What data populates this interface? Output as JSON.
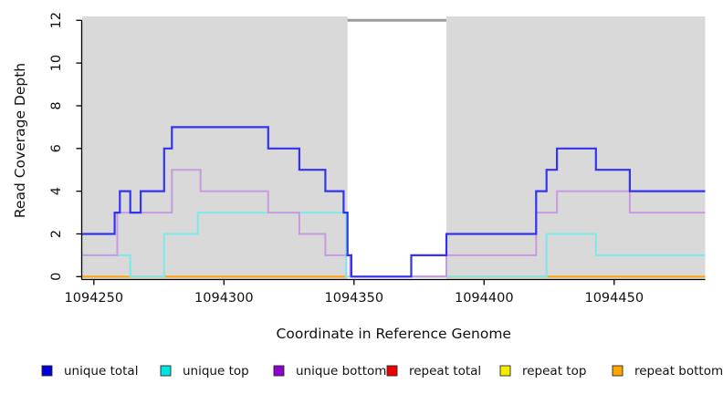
{
  "chart_data": {
    "type": "step-line-coverage",
    "title": "",
    "xlabel": "Coordinate in Reference Genome",
    "ylabel": "Read Coverage Depth",
    "xlim": [
      1094245.5,
      1094485
    ],
    "ylim": [
      0,
      12
    ],
    "xticks": [
      1094250,
      1094300,
      1094350,
      1094400,
      1094450
    ],
    "yticks": [
      0,
      2,
      4,
      6,
      8,
      10,
      12
    ],
    "grid": false,
    "plot_background_color": "#d9d9d9",
    "background_regions": [
      {
        "name": "covered-region-left",
        "x0": 1094245.5,
        "x1": 1094347.5
      },
      {
        "name": "covered-region-right",
        "x0": 1094385.5,
        "x1": 1094485
      }
    ],
    "gap_marker": {
      "x0": 1094347.5,
      "x1": 1094385.5,
      "depth": 12,
      "color": "#9b9b9b"
    },
    "series": [
      {
        "name": "unique total",
        "line_color": "#3434f0",
        "swatch_color": "#0000d8",
        "width": 2.2,
        "segments": [
          [
            [
              1094245.5,
              2
            ],
            [
              1094258,
              3
            ],
            [
              1094260,
              4
            ],
            [
              1094264,
              3
            ],
            [
              1094268,
              4
            ],
            [
              1094277,
              6
            ],
            [
              1094280,
              7
            ],
            [
              1094317,
              6
            ],
            [
              1094329,
              5
            ],
            [
              1094339,
              4
            ],
            [
              1094346,
              3
            ],
            [
              1094347.5,
              1
            ],
            [
              1094349,
              0
            ],
            [
              1094372,
              1
            ],
            [
              1094385.5,
              2
            ],
            [
              1094420,
              4
            ],
            [
              1094424,
              5
            ],
            [
              1094428,
              6
            ],
            [
              1094443,
              5
            ],
            [
              1094456,
              4
            ],
            [
              1094485,
              4
            ]
          ]
        ]
      },
      {
        "name": "unique top",
        "line_color": "#7de9e9",
        "swatch_color": "#00e4e4",
        "width": 2,
        "segments": [
          [
            [
              1094245.5,
              1
            ],
            [
              1094264,
              0
            ],
            [
              1094277,
              2
            ],
            [
              1094290,
              3
            ],
            [
              1094347,
              0
            ],
            [
              1094424,
              2
            ],
            [
              1094443,
              1
            ],
            [
              1094485,
              1
            ]
          ]
        ]
      },
      {
        "name": "unique bottom",
        "line_color": "#c79be0",
        "swatch_color": "#8e00cc",
        "width": 2,
        "segments": [
          [
            [
              1094245.5,
              1
            ],
            [
              1094259,
              3
            ],
            [
              1094280,
              5
            ],
            [
              1094291,
              4
            ],
            [
              1094317,
              3
            ],
            [
              1094329,
              2
            ],
            [
              1094339,
              1
            ],
            [
              1094348.5,
              0
            ],
            [
              1094385.5,
              1
            ],
            [
              1094420,
              3
            ],
            [
              1094428,
              4
            ],
            [
              1094456,
              3
            ],
            [
              1094485,
              3
            ]
          ]
        ]
      },
      {
        "name": "repeat total",
        "line_color": "#e0566c",
        "swatch_color": "#ee0000",
        "width": 2,
        "segments": [
          [
            [
              1094372,
              0
            ],
            [
              1094385.5,
              0
            ]
          ]
        ]
      },
      {
        "name": "repeat top",
        "line_color": "#f5ec00",
        "swatch_color": "#f5ec00",
        "width": 2,
        "segments": []
      },
      {
        "name": "repeat bottom",
        "line_color": "#ffa513",
        "swatch_color": "#ffa500",
        "width": 2.2,
        "segments": [
          [
            [
              1094245.5,
              0
            ],
            [
              1094347.5,
              0
            ]
          ],
          [
            [
              1094385.5,
              0
            ],
            [
              1094485,
              0
            ]
          ]
        ]
      }
    ],
    "legend": {
      "position": "bottom",
      "entries": [
        "unique total",
        "unique top",
        "unique bottom",
        "repeat total",
        "repeat top",
        "repeat bottom"
      ]
    }
  }
}
